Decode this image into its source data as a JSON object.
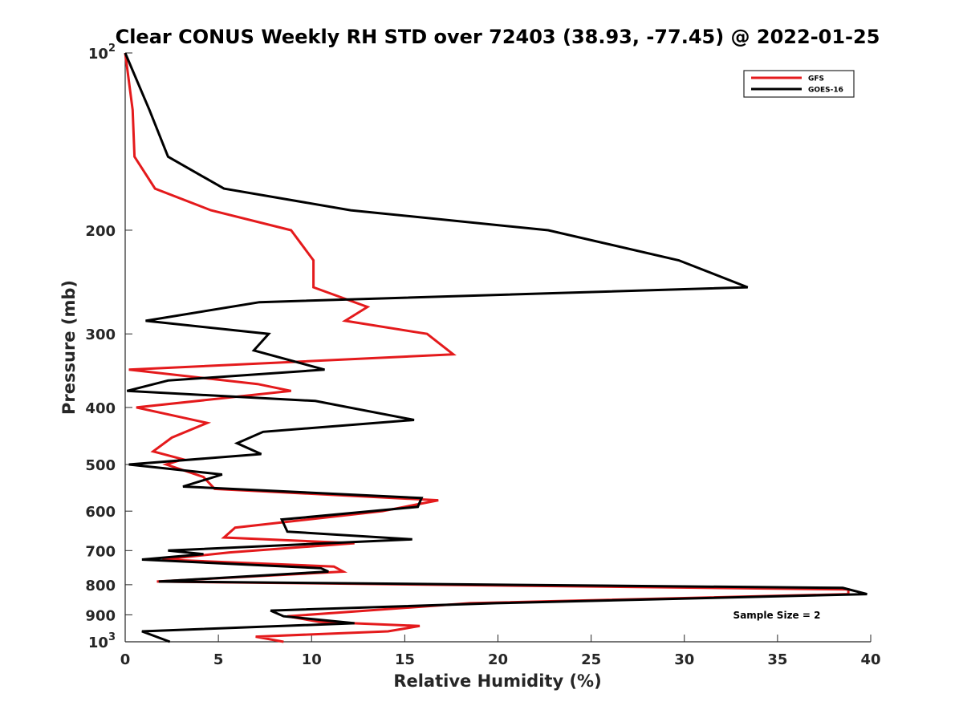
{
  "chart_data": {
    "type": "line",
    "title": "Clear CONUS Weekly RH STD over 72403 (38.93, -77.45) @ 2022-01-25",
    "xlabel": "Relative Humidity (%)",
    "ylabel": "Pressure (mb)",
    "xlim": [
      0,
      40
    ],
    "ylim": [
      100,
      1000
    ],
    "yscale": "log",
    "y_reversed": true,
    "x_ticks": [
      "0",
      "5",
      "10",
      "15",
      "20",
      "25",
      "30",
      "35",
      "40"
    ],
    "y_ticks": [
      {
        "value": 100,
        "base": "10",
        "exp": "2"
      },
      {
        "value": 200,
        "label": "200"
      },
      {
        "value": 300,
        "label": "300"
      },
      {
        "value": 400,
        "label": "400"
      },
      {
        "value": 500,
        "label": "500"
      },
      {
        "value": 600,
        "label": "600"
      },
      {
        "value": 700,
        "label": "700"
      },
      {
        "value": 800,
        "label": "800"
      },
      {
        "value": 900,
        "label": "900"
      },
      {
        "value": 1000,
        "base": "10",
        "exp": "3"
      }
    ],
    "grid": false,
    "legend_position": "top-right",
    "annotation": "Sample Size = 2",
    "series": [
      {
        "name": "GFS",
        "color": "#e41a1c",
        "points": [
          [
            0.0,
            100
          ],
          [
            0.4,
            125
          ],
          [
            0.5,
            150
          ],
          [
            1.6,
            170
          ],
          [
            4.6,
            185
          ],
          [
            8.9,
            200
          ],
          [
            10.1,
            225
          ],
          [
            10.1,
            250
          ],
          [
            13.0,
            270
          ],
          [
            11.8,
            285
          ],
          [
            16.2,
            300
          ],
          [
            17.6,
            325
          ],
          [
            0.2,
            345
          ],
          [
            7.1,
            365
          ],
          [
            8.9,
            375
          ],
          [
            0.6,
            400
          ],
          [
            4.4,
            425
          ],
          [
            2.5,
            450
          ],
          [
            1.5,
            475
          ],
          [
            3.1,
            490
          ],
          [
            2.2,
            500
          ],
          [
            4.2,
            525
          ],
          [
            4.8,
            550
          ],
          [
            16.8,
            575
          ],
          [
            13.8,
            600
          ],
          [
            5.9,
            640
          ],
          [
            5.3,
            665
          ],
          [
            12.3,
            680
          ],
          [
            5.6,
            705
          ],
          [
            2.0,
            725
          ],
          [
            11.2,
            745
          ],
          [
            11.7,
            760
          ],
          [
            1.7,
            790
          ],
          [
            38.8,
            815
          ],
          [
            38.8,
            830
          ],
          [
            18.5,
            860
          ],
          [
            8.7,
            905
          ],
          [
            10.4,
            925
          ],
          [
            15.8,
            940
          ],
          [
            14.1,
            960
          ],
          [
            7.0,
            980
          ],
          [
            8.5,
            1000
          ]
        ]
      },
      {
        "name": "GOES-16",
        "color": "#000000",
        "points": [
          [
            0.0,
            100
          ],
          [
            1.3,
            125
          ],
          [
            2.3,
            150
          ],
          [
            5.3,
            170
          ],
          [
            12.1,
            185
          ],
          [
            22.7,
            200
          ],
          [
            29.7,
            225
          ],
          [
            33.4,
            250
          ],
          [
            7.2,
            265
          ],
          [
            1.1,
            285
          ],
          [
            7.7,
            300
          ],
          [
            6.9,
            320
          ],
          [
            10.7,
            345
          ],
          [
            2.3,
            360
          ],
          [
            0.1,
            375
          ],
          [
            10.2,
            390
          ],
          [
            15.5,
            420
          ],
          [
            7.4,
            440
          ],
          [
            6.0,
            460
          ],
          [
            7.3,
            480
          ],
          [
            0.2,
            500
          ],
          [
            5.2,
            520
          ],
          [
            3.1,
            545
          ],
          [
            15.9,
            570
          ],
          [
            15.7,
            590
          ],
          [
            8.4,
            620
          ],
          [
            8.7,
            650
          ],
          [
            15.4,
            670
          ],
          [
            2.3,
            700
          ],
          [
            4.2,
            710
          ],
          [
            0.9,
            725
          ],
          [
            10.5,
            750
          ],
          [
            10.9,
            760
          ],
          [
            1.8,
            790
          ],
          [
            38.5,
            810
          ],
          [
            39.8,
            830
          ],
          [
            19.9,
            860
          ],
          [
            7.8,
            885
          ],
          [
            8.5,
            905
          ],
          [
            12.3,
            930
          ],
          [
            0.9,
            960
          ],
          [
            2.4,
            1000
          ]
        ]
      }
    ]
  }
}
